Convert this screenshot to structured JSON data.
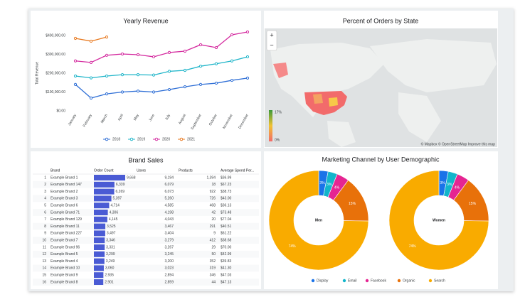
{
  "chart_data": [
    {
      "type": "line",
      "title": "Yearly Revenue",
      "y_label": "Total Revenue",
      "categories": [
        "January",
        "February",
        "March",
        "April",
        "May",
        "June",
        "July",
        "August",
        "September",
        "October",
        "November",
        "December"
      ],
      "series": [
        {
          "name": "2018",
          "color": "#2f6fd6",
          "values": [
            140000,
            68000,
            90000,
            100000,
            105000,
            100000,
            113000,
            128000,
            140000,
            147000,
            162000,
            174000
          ]
        },
        {
          "name": "2019",
          "color": "#1fb5c9",
          "values": [
            185000,
            175000,
            185000,
            192000,
            192000,
            190000,
            210000,
            215000,
            237000,
            250000,
            265000,
            287000
          ]
        },
        {
          "name": "2020",
          "color": "#d42b9f",
          "values": [
            265000,
            257000,
            295000,
            302000,
            298000,
            287000,
            310000,
            317000,
            351000,
            336000,
            404000,
            419000
          ]
        },
        {
          "name": "2021",
          "color": "#e8791f",
          "values": [
            385000,
            370000,
            392000,
            null,
            null,
            null,
            null,
            null,
            null,
            null,
            null,
            null
          ]
        }
      ],
      "ylim": [
        0,
        440000
      ],
      "yticks": [
        {
          "value": 0,
          "label": "$0.00"
        },
        {
          "value": 100000,
          "label": "$100,000.00"
        },
        {
          "value": 200000,
          "label": "$200,000.00"
        },
        {
          "value": 300000,
          "label": "$300,000.00"
        },
        {
          "value": 400000,
          "label": "$400,000.00"
        }
      ],
      "grid": false,
      "legend": "bottom"
    },
    {
      "type": "pie",
      "donut": true,
      "label": "Men",
      "categories": [
        "Display",
        "Email",
        "Facebook",
        "Organic",
        "Search"
      ],
      "colors": [
        "#1a73e8",
        "#12b5cb",
        "#e52592",
        "#e8710a",
        "#f9ab00"
      ],
      "values": [
        3,
        3,
        4,
        15,
        74
      ],
      "value_labels": [
        "3%",
        "3%",
        "4%",
        "15%",
        "74%"
      ]
    },
    {
      "type": "pie",
      "donut": true,
      "label": "Women",
      "categories": [
        "Display",
        "Email",
        "Facebook",
        "Organic",
        "Search"
      ],
      "colors": [
        "#1a73e8",
        "#12b5cb",
        "#e52592",
        "#e8710a",
        "#f9ab00"
      ],
      "values": [
        3,
        3,
        4,
        15,
        74
      ],
      "value_labels": [
        "3%",
        "3%",
        "4%",
        "15%",
        "74%"
      ]
    }
  ],
  "marketing_title": "Marketing Channel by User Demographic",
  "map": {
    "title": "Percent of Orders by State",
    "zoom_in": "+",
    "zoom_out": "−",
    "scale_max": "17%",
    "scale_min": "0%",
    "attribution": "© Mapbox © OpenStreetMap Improve this map"
  },
  "table": {
    "title": "Brand Sales",
    "columns": [
      "Brand",
      "Order Count",
      "Users",
      "Products",
      "Average Spend Per..."
    ],
    "rows": [
      [
        "1",
        "Example Brand 1",
        "9,668",
        "9,194",
        "1,394",
        "$36.99"
      ],
      [
        "2",
        "Example Brand 147",
        "6,339",
        "6,079",
        "18",
        "$67.23"
      ],
      [
        "3",
        "Example Brand 2",
        "6,269",
        "6,073",
        "922",
        "$38.73"
      ],
      [
        "4",
        "Example Brand 3",
        "5,397",
        "5,260",
        "726",
        "$43.00"
      ],
      [
        "5",
        "Example Brand 6",
        "4,714",
        "4,585",
        "468",
        "$36.13"
      ],
      [
        "6",
        "Example Brand 71",
        "4,306",
        "4,198",
        "42",
        "$73.48"
      ],
      [
        "7",
        "Example Brand 129",
        "4,145",
        "4,043",
        "20",
        "$77.04"
      ],
      [
        "8",
        "Example Brand 11",
        "3,525",
        "3,467",
        "291",
        "$40.51"
      ],
      [
        "9",
        "Example Brand 227",
        "3,497",
        "3,404",
        "9",
        "$61.22"
      ],
      [
        "10",
        "Example Brand 7",
        "3,346",
        "3,279",
        "412",
        "$38.68"
      ],
      [
        "11",
        "Example Brand 96",
        "3,331",
        "3,267",
        "29",
        "$70.00"
      ],
      [
        "12",
        "Example Brand 5",
        "3,299",
        "3,245",
        "50",
        "$42.99"
      ],
      [
        "13",
        "Example Brand 4",
        "3,249",
        "3,200",
        "352",
        "$39.83"
      ],
      [
        "14",
        "Example Brand 10",
        "3,060",
        "3,023",
        "319",
        "$41.30"
      ],
      [
        "15",
        "Example Brand 9",
        "2,935",
        "2,894",
        "346",
        "$47.03"
      ],
      [
        "16",
        "Example Brand 8",
        "2,901",
        "2,859",
        "44",
        "$47.13"
      ]
    ]
  }
}
